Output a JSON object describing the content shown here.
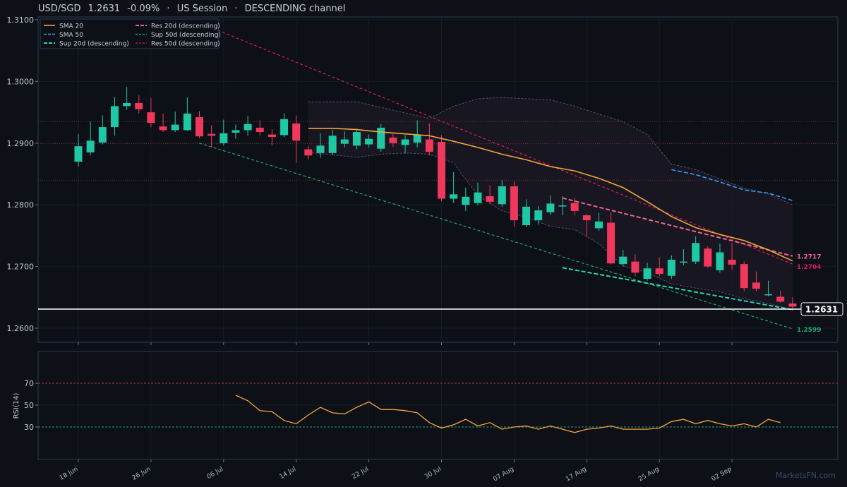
{
  "header": {
    "symbol": "USD/SGD",
    "price": "1.2631",
    "change": "-0.09%",
    "sep1": "·",
    "session": "US Session",
    "sep2": "·",
    "channel": "DESCENDING channel"
  },
  "watermark": "MarketsFN.com",
  "colors": {
    "background": "#0d1017",
    "up": "#1ec8a5",
    "down": "#f0385c",
    "sma20": "#f2a53a",
    "sma50": "#2f9bf0",
    "res": "#f06292",
    "res50": "#d81b60",
    "sup": "#26d6b0",
    "sup50": "#1fa86a",
    "price_line": "#ffffff",
    "rsi": "#f2a53a"
  },
  "chart_data": [
    {
      "type": "candlestick",
      "ylim": [
        1.2575,
        1.311
      ],
      "yticks": [
        "1.2600",
        "1.2700",
        "1.2800",
        "1.2900",
        "1.3000",
        "1.3100"
      ],
      "xticks": [
        "18 Jun",
        "26 Jun",
        "06 Jul",
        "14 Jul",
        "22 Jul",
        "30 Jul",
        "07 Aug",
        "17 Aug",
        "25 Aug",
        "02 Sep"
      ],
      "legend": [
        "SMA 20",
        "SMA 50",
        "Sup 20d (descending)",
        "Res 20d (descending)",
        "Sup 50d (descending)",
        "Res 50d (descending)"
      ],
      "candles": [
        [
          1.287,
          1.2895,
          1.2862,
          1.2915
        ],
        [
          1.2885,
          1.2904,
          1.288,
          1.2935
        ],
        [
          1.2901,
          1.2926,
          1.2898,
          1.2945
        ],
        [
          1.2926,
          1.296,
          1.2912,
          1.2975
        ],
        [
          1.296,
          1.2965,
          1.2954,
          1.2991
        ],
        [
          1.2965,
          1.2955,
          1.2948,
          1.2978
        ],
        [
          1.295,
          1.2933,
          1.2926,
          1.2973
        ],
        [
          1.2927,
          1.2921,
          1.2918,
          1.2948
        ],
        [
          1.2921,
          1.293,
          1.2918,
          1.2951
        ],
        [
          1.2921,
          1.2948,
          1.292,
          1.2974
        ],
        [
          1.2942,
          1.2911,
          1.2908,
          1.2952
        ],
        [
          1.2915,
          1.2912,
          1.2893,
          1.2929
        ],
        [
          1.29,
          1.2916,
          1.2896,
          1.2938
        ],
        [
          1.2917,
          1.2921,
          1.2907,
          1.293
        ],
        [
          1.2921,
          1.2931,
          1.2912,
          1.2944
        ],
        [
          1.2925,
          1.2918,
          1.2912,
          1.2937
        ],
        [
          1.2914,
          1.291,
          1.2896,
          1.2923
        ],
        [
          1.2913,
          1.2939,
          1.291,
          1.2949
        ],
        [
          1.2932,
          1.2904,
          1.2868,
          1.2945
        ],
        [
          1.289,
          1.288,
          1.2873,
          1.2895
        ],
        [
          1.2884,
          1.2896,
          1.2876,
          1.2916
        ],
        [
          1.2884,
          1.2912,
          1.2881,
          1.2922
        ],
        [
          1.2899,
          1.2906,
          1.2893,
          1.2919
        ],
        [
          1.2896,
          1.2918,
          1.289,
          1.2924
        ],
        [
          1.2898,
          1.2907,
          1.2893,
          1.2914
        ],
        [
          1.2891,
          1.2925,
          1.2886,
          1.2931
        ],
        [
          1.2909,
          1.29,
          1.2894,
          1.2915
        ],
        [
          1.2897,
          1.2906,
          1.2883,
          1.2913
        ],
        [
          1.2901,
          1.2913,
          1.2893,
          1.2937
        ],
        [
          1.2906,
          1.2886,
          1.288,
          1.2932
        ],
        [
          1.2902,
          1.281,
          1.2806,
          1.2913
        ],
        [
          1.281,
          1.2817,
          1.2803,
          1.2853
        ],
        [
          1.28,
          1.2813,
          1.279,
          1.2828
        ],
        [
          1.2803,
          1.282,
          1.2799,
          1.2836
        ],
        [
          1.2814,
          1.2805,
          1.2801,
          1.2832
        ],
        [
          1.2801,
          1.283,
          1.2797,
          1.284
        ],
        [
          1.283,
          1.2775,
          1.2764,
          1.2838
        ],
        [
          1.2767,
          1.2797,
          1.2764,
          1.2809
        ],
        [
          1.2775,
          1.2791,
          1.2768,
          1.2798
        ],
        [
          1.2788,
          1.2802,
          1.2784,
          1.2815
        ],
        [
          1.2798,
          1.2799,
          1.2783,
          1.2814
        ],
        [
          1.2803,
          1.279,
          1.2783,
          1.2811
        ],
        [
          1.2783,
          1.2775,
          1.2749,
          1.2785
        ],
        [
          1.2762,
          1.2773,
          1.2758,
          1.2787
        ],
        [
          1.2771,
          1.2705,
          1.2703,
          1.2788
        ],
        [
          1.2704,
          1.2716,
          1.27,
          1.2727
        ],
        [
          1.2708,
          1.269,
          1.2684,
          1.272
        ],
        [
          1.268,
          1.2697,
          1.2677,
          1.2706
        ],
        [
          1.2697,
          1.2688,
          1.2684,
          1.2715
        ],
        [
          1.2685,
          1.2711,
          1.268,
          1.2718
        ],
        [
          1.2708,
          1.2708,
          1.2702,
          1.2728
        ],
        [
          1.2708,
          1.2738,
          1.2704,
          1.2749
        ],
        [
          1.2729,
          1.27,
          1.2698,
          1.2733
        ],
        [
          1.2694,
          1.2723,
          1.269,
          1.2737
        ],
        [
          1.2711,
          1.2703,
          1.2695,
          1.2738
        ],
        [
          1.2704,
          1.2665,
          1.266,
          1.2708
        ],
        [
          1.2674,
          1.2664,
          1.266,
          1.2692
        ],
        [
          1.2655,
          1.2655,
          1.2652,
          1.2677
        ],
        [
          1.2651,
          1.2643,
          1.2641,
          1.2661
        ],
        [
          1.264,
          1.2635,
          1.2628,
          1.265
        ]
      ],
      "sma20": [
        [
          19,
          1.2924
        ],
        [
          21,
          1.2924
        ],
        [
          23,
          1.2922
        ],
        [
          25,
          1.2918
        ],
        [
          27,
          1.2915
        ],
        [
          29,
          1.2912
        ],
        [
          31,
          1.2903
        ],
        [
          33,
          1.2893
        ],
        [
          35,
          1.2882
        ],
        [
          37,
          1.2873
        ],
        [
          39,
          1.2862
        ],
        [
          41,
          1.2855
        ],
        [
          43,
          1.2843
        ],
        [
          45,
          1.2828
        ],
        [
          47,
          1.2805
        ],
        [
          49,
          1.2781
        ],
        [
          51,
          1.2763
        ],
        [
          53,
          1.2752
        ],
        [
          55,
          1.2742
        ],
        [
          57,
          1.2727
        ],
        [
          59,
          1.2709
        ]
      ],
      "sma50": [
        [
          49,
          1.2857
        ],
        [
          51,
          1.2849
        ],
        [
          53,
          1.2837
        ],
        [
          55,
          1.2824
        ],
        [
          57,
          1.2819
        ],
        [
          59,
          1.2807
        ]
      ],
      "bollinger": {
        "upper": [
          [
            19,
            1.2967
          ],
          [
            23,
            1.2967
          ],
          [
            25,
            1.2958
          ],
          [
            27,
            1.2949
          ],
          [
            29,
            1.294
          ],
          [
            31,
            1.296
          ],
          [
            33,
            1.2972
          ],
          [
            35,
            1.2974
          ],
          [
            37,
            1.2972
          ],
          [
            39,
            1.297
          ],
          [
            41,
            1.296
          ],
          [
            43,
            1.2947
          ],
          [
            45,
            1.2935
          ],
          [
            47,
            1.2914
          ],
          [
            49,
            1.2866
          ],
          [
            51,
            1.2857
          ],
          [
            53,
            1.2842
          ],
          [
            55,
            1.2827
          ],
          [
            57,
            1.2818
          ],
          [
            59,
            1.28
          ]
        ],
        "lower": [
          [
            19,
            1.2885
          ],
          [
            21,
            1.2881
          ],
          [
            23,
            1.2877
          ],
          [
            25,
            1.2882
          ],
          [
            27,
            1.2884
          ],
          [
            29,
            1.2882
          ],
          [
            31,
            1.2868
          ],
          [
            33,
            1.2815
          ],
          [
            35,
            1.279
          ],
          [
            37,
            1.278
          ],
          [
            39,
            1.2765
          ],
          [
            41,
            1.276
          ],
          [
            43,
            1.2737
          ],
          [
            45,
            1.2701
          ],
          [
            47,
            1.269
          ],
          [
            49,
            1.2672
          ],
          [
            51,
            1.2665
          ],
          [
            53,
            1.2659
          ],
          [
            55,
            1.2648
          ],
          [
            57,
            1.264
          ],
          [
            59,
            1.263
          ]
        ]
      },
      "trendlines": [
        {
          "name": "Res 50d (descending)",
          "from": [
            10,
            1.3095
          ],
          "to": [
            59,
            1.2704
          ],
          "label": "1.2704"
        },
        {
          "name": "Sup 50d (descending)",
          "from": [
            10,
            1.29
          ],
          "to": [
            59,
            1.2599
          ],
          "label": "1.2599"
        },
        {
          "name": "Res 20d (descending)",
          "from": [
            40,
            1.2811
          ],
          "to": [
            59,
            1.2717
          ],
          "label": "1.2717"
        },
        {
          "name": "Sup 20d (descending)",
          "from": [
            40,
            1.2698
          ],
          "to": [
            59,
            1.263
          ]
        }
      ],
      "last_price": "1.2631",
      "resistance_levels": [
        1.2935,
        1.2899,
        1.284
      ]
    },
    {
      "type": "line",
      "ylabel": "RSI(14)",
      "yticks": [
        "30",
        "50",
        "70"
      ],
      "ylim": [
        0,
        100
      ],
      "overbought": 70,
      "oversold": 30,
      "values": [
        [
          13,
          59
        ],
        [
          14,
          54
        ],
        [
          15,
          45
        ],
        [
          16,
          44
        ],
        [
          17,
          36
        ],
        [
          18,
          33
        ],
        [
          19,
          41
        ],
        [
          20,
          48
        ],
        [
          21,
          43
        ],
        [
          22,
          42
        ],
        [
          23,
          48
        ],
        [
          24,
          53
        ],
        [
          25,
          46
        ],
        [
          26,
          46
        ],
        [
          27,
          45
        ],
        [
          28,
          43
        ],
        [
          29,
          34
        ],
        [
          30,
          29
        ],
        [
          31,
          32
        ],
        [
          32,
          37
        ],
        [
          33,
          31
        ],
        [
          34,
          34
        ],
        [
          35,
          28
        ],
        [
          36,
          30
        ],
        [
          37,
          31
        ],
        [
          38,
          28
        ],
        [
          39,
          31
        ],
        [
          40,
          28
        ],
        [
          41,
          25
        ],
        [
          42,
          28
        ],
        [
          43,
          29
        ],
        [
          44,
          31
        ],
        [
          45,
          28
        ],
        [
          46,
          28
        ],
        [
          47,
          28
        ],
        [
          48,
          29
        ],
        [
          49,
          35
        ],
        [
          50,
          37
        ],
        [
          51,
          33
        ],
        [
          52,
          36
        ],
        [
          53,
          33
        ],
        [
          54,
          31
        ],
        [
          55,
          33
        ],
        [
          56,
          30
        ],
        [
          57,
          37
        ],
        [
          58,
          34
        ]
      ]
    }
  ]
}
